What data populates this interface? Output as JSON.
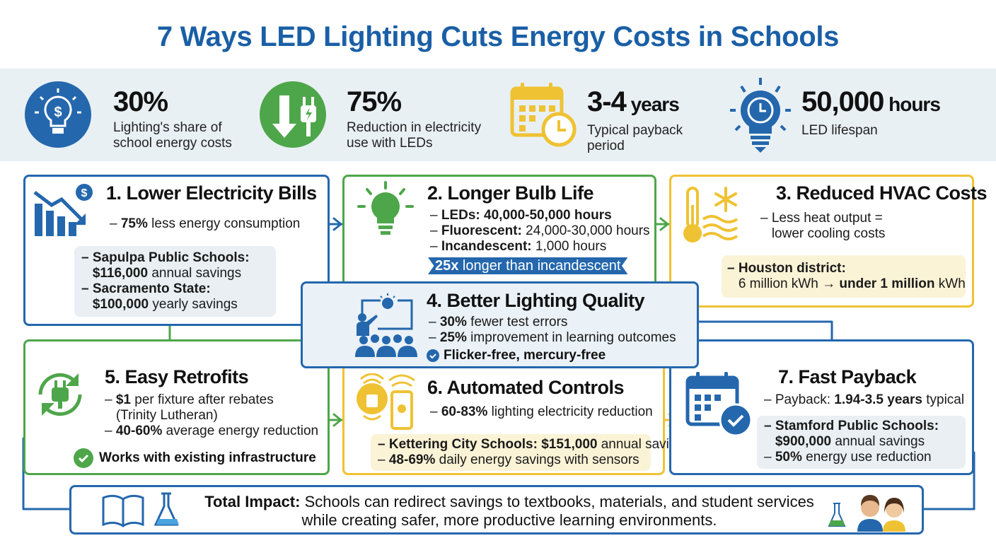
{
  "title": "7 Ways LED Lighting Cuts Energy Costs in Schools",
  "colors": {
    "blue": "#2467ad",
    "green": "#4ea64a",
    "yellow": "#efc233",
    "band": "#e9f0f4"
  },
  "stats": [
    {
      "value": "30%",
      "unit": "",
      "label1": "Lighting's share of",
      "label2": "school energy costs",
      "icon": "lightbulb-dollar-icon"
    },
    {
      "value": "75%",
      "unit": "",
      "label1": "Reduction in electricity",
      "label2": "use with LEDs",
      "icon": "down-arrow-plug-icon"
    },
    {
      "value": "3-4",
      "unit": " years",
      "label1": "Typical payback",
      "label2": "period",
      "icon": "calendar-clock-icon"
    },
    {
      "value": "50,000",
      "unit": " hours",
      "label1": "LED lifespan",
      "label2": "",
      "icon": "lightbulb-clock-icon"
    }
  ],
  "cards": {
    "c1": {
      "title": "1. Lower Electricity Bills",
      "bullets": [
        [
          [
            "– ",
            0
          ],
          [
            "75%",
            1
          ],
          [
            " less energy consumption",
            0
          ]
        ]
      ],
      "box": [
        [
          [
            "– Sapulpa Public Schools:",
            1
          ]
        ],
        [
          [
            "   $116,000",
            1
          ],
          [
            " annual savings",
            0
          ]
        ],
        [
          [
            "– Sacramento State:",
            1
          ]
        ],
        [
          [
            "   $100,000",
            1
          ],
          [
            " yearly savings",
            0
          ]
        ]
      ]
    },
    "c2": {
      "title": "2. Longer Bulb Life",
      "bullets": [
        [
          [
            "– ",
            0
          ],
          [
            "LEDs:",
            1
          ],
          [
            " 40,000-50,000 hours",
            1
          ]
        ],
        [
          [
            "– ",
            0
          ],
          [
            "Fluorescent:",
            1
          ],
          [
            " 24,000-30,000 hours",
            0
          ]
        ],
        [
          [
            "– ",
            0
          ],
          [
            "Incandescent:",
            1
          ],
          [
            " 1,000 hours",
            0
          ]
        ]
      ],
      "banner_bold": "25x",
      "banner_text": " longer than incandescent"
    },
    "c3": {
      "title": "3. Reduced HVAC Costs",
      "bullets": [
        [
          [
            "– Less heat output =",
            0
          ]
        ],
        [
          [
            "   lower cooling costs",
            0
          ]
        ]
      ],
      "box": [
        [
          [
            "– Houston district:",
            1
          ]
        ],
        [
          [
            "   6 million kWh → ",
            0
          ],
          [
            "under 1 million",
            1
          ],
          [
            " kWh",
            0
          ]
        ]
      ]
    },
    "c4": {
      "title": "4. Better Lighting Quality",
      "bullets": [
        [
          [
            "– ",
            0
          ],
          [
            "30%",
            1
          ],
          [
            " fewer test errors",
            0
          ]
        ],
        [
          [
            "– ",
            0
          ],
          [
            "25%",
            1
          ],
          [
            " improvement in learning outcomes",
            0
          ]
        ]
      ],
      "check": "Flicker-free, mercury-free"
    },
    "c5": {
      "title": "5. Easy Retrofits",
      "bullets": [
        [
          [
            "– ",
            0
          ],
          [
            "$1",
            1
          ],
          [
            " per fixture after rebates",
            0
          ]
        ],
        [
          [
            "   (Trinity Lutheran)",
            0
          ]
        ],
        [
          [
            "– ",
            0
          ],
          [
            "40-60%",
            1
          ],
          [
            " average energy reduction",
            0
          ]
        ]
      ],
      "check": "Works with existing infrastructure"
    },
    "c6": {
      "title": "6. Automated Controls",
      "bullets": [
        [
          [
            "– ",
            0
          ],
          [
            "60-83%",
            1
          ],
          [
            " lighting electricity reduction",
            0
          ]
        ]
      ],
      "box": [
        [
          [
            "– Kettering City Schools: $151,000",
            1
          ],
          [
            " annual savings",
            0
          ]
        ],
        [
          [
            "– ",
            0
          ],
          [
            "48-69%",
            1
          ],
          [
            " daily energy savings with sensors",
            0
          ]
        ]
      ]
    },
    "c7": {
      "title": "7. Fast Payback",
      "bullets": [
        [
          [
            "– Payback: ",
            0
          ],
          [
            "1.94-3.5 years",
            1
          ],
          [
            " typical",
            0
          ]
        ]
      ],
      "box": [
        [
          [
            "– Stamford Public Schools:",
            1
          ]
        ],
        [
          [
            "   $900,000",
            1
          ],
          [
            " annual savings",
            0
          ]
        ],
        [
          [
            "– ",
            0
          ],
          [
            "50%",
            1
          ],
          [
            " energy use reduction",
            0
          ]
        ]
      ]
    }
  },
  "footer": {
    "bold": "Total Impact:",
    "line1": " Schools can redirect savings to textbooks, materials, and student services",
    "line2": "while creating safer, more productive learning environments."
  }
}
